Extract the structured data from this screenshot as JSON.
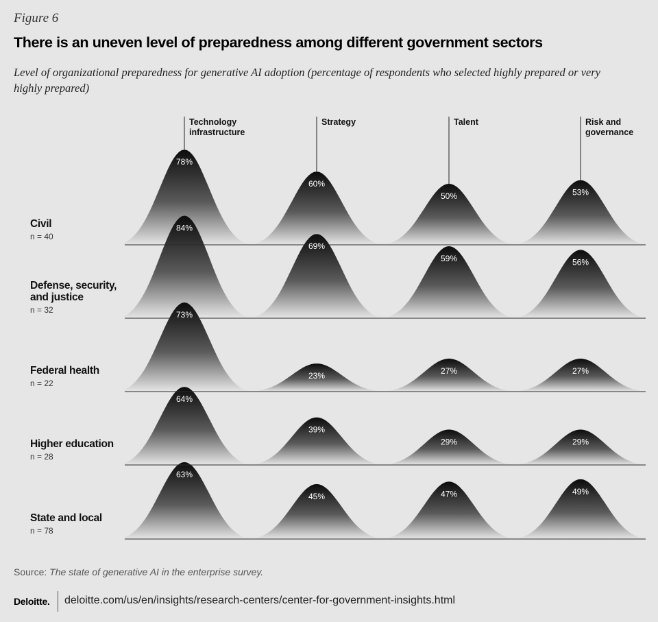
{
  "figure_label": "Figure 6",
  "title": "There is an uneven level of preparedness among different government sectors",
  "subtitle": "Level of organizational preparedness for generative AI adoption (percentage of respondents who selected highly prepared or very highly prepared)",
  "colors": {
    "background": "#e6e6e6",
    "peak_dark": "#111111",
    "text": "#111111"
  },
  "chart_data": {
    "type": "ridgeline",
    "columns": [
      "Technology infrastructure",
      "Strategy",
      "Talent",
      "Risk and governance"
    ],
    "rows": [
      {
        "name": "Civil",
        "n": "n = 40",
        "values": [
          78,
          60,
          50,
          53
        ]
      },
      {
        "name": "Defense, security, and justice",
        "n": "n = 32",
        "values": [
          84,
          69,
          59,
          56
        ]
      },
      {
        "name": "Federal health",
        "n": "n = 22",
        "values": [
          73,
          23,
          27,
          27
        ]
      },
      {
        "name": "Higher education",
        "n": "n = 28",
        "values": [
          64,
          39,
          29,
          29
        ]
      },
      {
        "name": "State and local",
        "n": "n = 78",
        "values": [
          63,
          45,
          47,
          49
        ]
      }
    ],
    "unit": "%"
  },
  "source": {
    "label": "Source: ",
    "title": "The state of generative AI in the enterprise survey."
  },
  "logo": "Deloitte.",
  "url": "deloitte.com/us/en/insights/research-centers/center-for-government-insights.html"
}
